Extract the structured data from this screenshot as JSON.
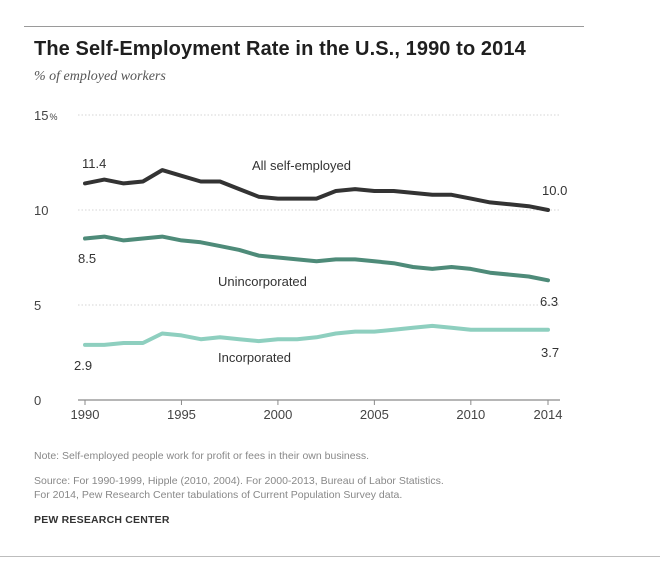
{
  "chart_data": {
    "type": "line",
    "title": "The Self-Employment Rate in the U.S., 1990 to 2014",
    "subtitle": "% of employed workers",
    "x": [
      1990,
      1991,
      1992,
      1993,
      1994,
      1995,
      1996,
      1997,
      1998,
      1999,
      2000,
      2001,
      2002,
      2003,
      2004,
      2005,
      2006,
      2007,
      2008,
      2009,
      2010,
      2011,
      2012,
      2013,
      2014
    ],
    "x_ticks": [
      "1990",
      "1995",
      "2000",
      "2005",
      "2010",
      "2014"
    ],
    "x_tick_values": [
      1990,
      1995,
      2000,
      2005,
      2010,
      2014
    ],
    "y_ticks": [
      "0",
      "5",
      "10",
      "15"
    ],
    "y_tick_values": [
      0,
      5,
      10,
      15
    ],
    "y_unit": "%",
    "ylim": [
      0,
      15
    ],
    "xlim": [
      1990,
      2014
    ],
    "grid": true,
    "series": [
      {
        "name": "All self-employed",
        "color": "#333333",
        "values": [
          11.4,
          11.6,
          11.4,
          11.5,
          12.1,
          11.8,
          11.5,
          11.5,
          11.1,
          10.7,
          10.6,
          10.6,
          10.6,
          11.0,
          11.1,
          11.0,
          11.0,
          10.9,
          10.8,
          10.8,
          10.6,
          10.4,
          10.3,
          10.2,
          10.0
        ],
        "start_label": "11.4",
        "end_label": "10.0"
      },
      {
        "name": "Unincorporated",
        "color": "#4e8b79",
        "values": [
          8.5,
          8.6,
          8.4,
          8.5,
          8.6,
          8.4,
          8.3,
          8.1,
          7.9,
          7.6,
          7.5,
          7.4,
          7.3,
          7.4,
          7.4,
          7.3,
          7.2,
          7.0,
          6.9,
          7.0,
          6.9,
          6.7,
          6.6,
          6.5,
          6.3
        ],
        "start_label": "8.5",
        "end_label": "6.3"
      },
      {
        "name": "Incorporated",
        "color": "#8ecfbf",
        "values": [
          2.9,
          2.9,
          3.0,
          3.0,
          3.5,
          3.4,
          3.2,
          3.3,
          3.2,
          3.1,
          3.2,
          3.2,
          3.3,
          3.5,
          3.6,
          3.6,
          3.7,
          3.8,
          3.9,
          3.8,
          3.7,
          3.7,
          3.7,
          3.7,
          3.7
        ],
        "start_label": "2.9",
        "end_label": "3.7"
      }
    ]
  },
  "notes": {
    "note": "Note: Self-employed people work for profit or fees in their own business.",
    "source_line1": "Source: For 1990-1999, Hipple (2010, 2004). For 2000-2013, Bureau of Labor Statistics.",
    "source_line2": "For 2014, Pew Research Center tabulations of Current Population Survey data.",
    "credit": "PEW RESEARCH CENTER"
  }
}
